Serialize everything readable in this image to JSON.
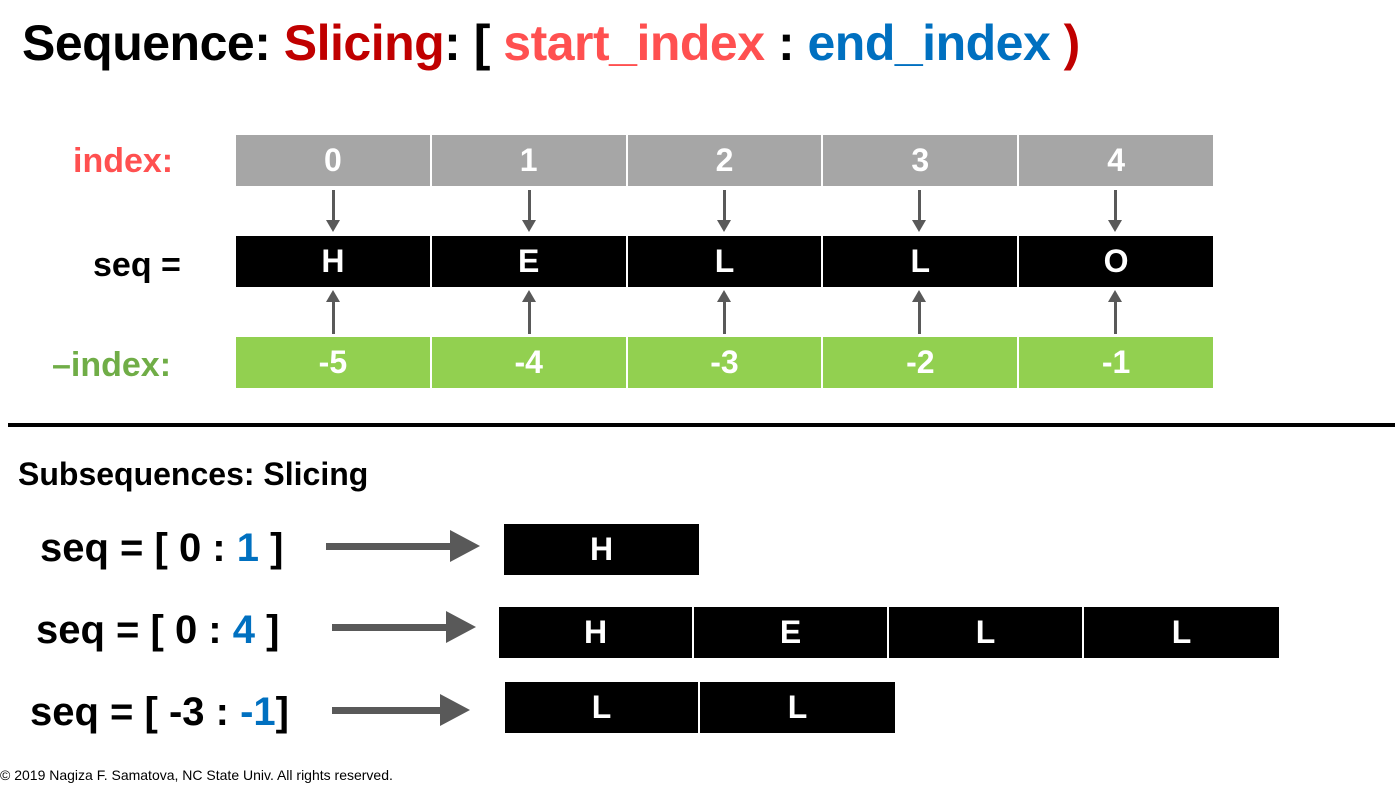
{
  "title": {
    "part1": "Sequence: ",
    "part2": "Slicing",
    "part3": ": [ ",
    "part4": "start_index",
    "part5": " : ",
    "part6": "end_index",
    "part7": " )"
  },
  "colors": {
    "accent_red": "#c00000",
    "start_color": "#ff5050",
    "end_color": "#0070c0",
    "index_bg": "#a6a6a6",
    "neg_bg": "#92d050",
    "neg_label": "#70ad47"
  },
  "labels": {
    "index": "index:",
    "seq": "seq =",
    "neg_index": "–index:"
  },
  "indices": [
    "0",
    "1",
    "2",
    "3",
    "4"
  ],
  "seq": [
    "H",
    "E",
    "L",
    "L",
    "O"
  ],
  "neg_indices": [
    "-5",
    "-4",
    "-3",
    "-2",
    "-1"
  ],
  "subtitle": "Subsequences: Slicing",
  "examples": [
    {
      "prefix": "seq = [ 0 : ",
      "end": "1",
      "suffix": " ]",
      "result": [
        "H"
      ]
    },
    {
      "prefix": "seq = [ 0 : ",
      "end": "4",
      "suffix": " ]",
      "result": [
        "H",
        "E",
        "L",
        "L"
      ]
    },
    {
      "prefix": "seq = [ -3 : ",
      "end": "-1",
      "suffix": "]",
      "result": [
        "L",
        "L"
      ]
    }
  ],
  "footer": "© 2019  Nagiza F. Samatova, NC State Univ. All rights reserved."
}
